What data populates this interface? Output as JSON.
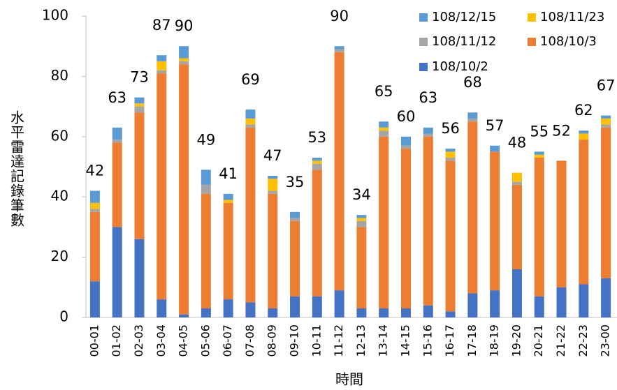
{
  "chart_data": {
    "type": "stacked_bar",
    "y_label": "水平雷達記錄筆數",
    "x_label": "時間",
    "categories": [
      "00-01",
      "01-02",
      "02-03",
      "03-04",
      "04-05",
      "05-06",
      "06-07",
      "07-08",
      "08-09",
      "09-10",
      "10-11",
      "11-12",
      "12-13",
      "13-14",
      "14-15",
      "15-16",
      "16-17",
      "17-18",
      "18-19",
      "19-20",
      "20-21",
      "21-22",
      "22-23",
      "23-00"
    ],
    "series": [
      {
        "name": "108/10/2",
        "color": "#4472c4",
        "values": [
          12,
          30,
          26,
          6,
          1,
          3,
          6,
          5,
          3,
          7,
          7,
          9,
          3,
          3,
          3,
          4,
          2,
          8,
          9,
          16,
          7,
          10,
          11,
          13
        ]
      },
      {
        "name": "108/10/3",
        "color": "#ed7d31",
        "values": [
          23,
          28,
          42,
          75,
          83,
          38,
          32,
          58,
          38,
          25,
          42,
          79,
          27,
          57,
          53,
          56,
          50,
          57,
          46,
          28,
          46,
          42,
          48,
          50
        ]
      },
      {
        "name": "108/11/12",
        "color": "#a5a5a5",
        "values": [
          1,
          1,
          2,
          1,
          1,
          3,
          0,
          1,
          1,
          1,
          2,
          1,
          2,
          2,
          1,
          1,
          1,
          1,
          0,
          1,
          0,
          0,
          0,
          1
        ]
      },
      {
        "name": "108/11/23",
        "color": "#ffc000",
        "values": [
          2,
          0,
          1,
          3,
          1,
          0,
          1,
          2,
          4,
          0,
          1,
          0,
          1,
          1,
          0,
          0,
          2,
          0,
          0,
          3,
          1,
          0,
          2,
          2
        ]
      },
      {
        "name": "108/12/15",
        "color": "#5b9bd5",
        "values": [
          4,
          4,
          2,
          2,
          4,
          5,
          2,
          3,
          1,
          2,
          1,
          1,
          1,
          2,
          3,
          2,
          1,
          2,
          2,
          0,
          1,
          0,
          1,
          1
        ]
      }
    ],
    "totals": [
      42,
      63,
      73,
      87,
      90,
      49,
      41,
      69,
      47,
      35,
      53,
      90,
      34,
      65,
      60,
      63,
      56,
      68,
      57,
      48,
      55,
      52,
      62,
      67
    ],
    "ylim": [
      0,
      100
    ],
    "yticks": [
      0,
      20,
      40,
      60,
      80,
      100
    ]
  }
}
